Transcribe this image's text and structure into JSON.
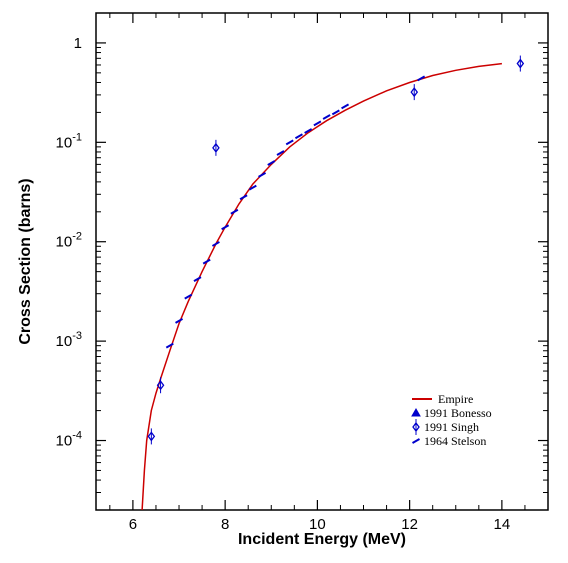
{
  "chart_data": {
    "type": "scatter",
    "title": "",
    "xlabel": "Incident Energy (MeV)",
    "ylabel": "Cross Section (barns)",
    "x_scale": "linear",
    "y_scale": "log",
    "xlim": [
      5.2,
      15.0
    ],
    "ylim": [
      2e-05,
      2.0
    ],
    "x_ticks": [
      6,
      8,
      10,
      12,
      14
    ],
    "y_ticks": [
      {
        "value": 1,
        "base": "1",
        "exp": ""
      },
      {
        "value": 0.1,
        "base": "10",
        "exp": "-1"
      },
      {
        "value": 0.01,
        "base": "10",
        "exp": "-2"
      },
      {
        "value": 0.001,
        "base": "10",
        "exp": "-3"
      },
      {
        "value": 0.0001,
        "base": "10",
        "exp": "-4"
      }
    ],
    "grid": false,
    "legend_position": "lower-right",
    "series": [
      {
        "name": "Empire",
        "kind": "line",
        "color": "#cc0000",
        "x": [
          6.2,
          6.25,
          6.3,
          6.4,
          6.5,
          6.6,
          6.8,
          7.0,
          7.2,
          7.5,
          7.8,
          8.0,
          8.3,
          8.6,
          9.0,
          9.4,
          9.8,
          10.2,
          10.6,
          11.0,
          11.5,
          12.0,
          12.5,
          13.0,
          13.5,
          14.0
        ],
        "y": [
          2e-05,
          5e-05,
          0.0001,
          0.0002,
          0.0003,
          0.00042,
          0.0008,
          0.0015,
          0.0025,
          0.005,
          0.0095,
          0.014,
          0.024,
          0.038,
          0.06,
          0.09,
          0.125,
          0.165,
          0.21,
          0.26,
          0.33,
          0.4,
          0.47,
          0.53,
          0.58,
          0.62
        ]
      },
      {
        "name": "1991 Bonesso",
        "kind": "markers",
        "marker": "triangle",
        "color": "#0000cc",
        "x": [],
        "y": []
      },
      {
        "name": "1991 Singh",
        "kind": "markers",
        "marker": "diamond",
        "color": "#0000cc",
        "x": [
          6.4,
          6.6,
          7.8,
          12.1,
          14.4
        ],
        "y": [
          0.00011,
          0.00036,
          0.088,
          0.32,
          0.62
        ]
      },
      {
        "name": "1964 Stelson",
        "kind": "markers",
        "marker": "slash",
        "color": "#0000cc",
        "x": [
          6.8,
          7.0,
          7.2,
          7.4,
          7.6,
          7.8,
          8.0,
          8.2,
          8.4,
          8.6,
          8.8,
          9.0,
          9.2,
          9.4,
          9.6,
          9.8,
          10.0,
          10.2,
          10.4,
          10.6,
          12.25
        ],
        "y": [
          0.0009,
          0.0016,
          0.0028,
          0.0042,
          0.0063,
          0.0095,
          0.014,
          0.02,
          0.028,
          0.035,
          0.047,
          0.062,
          0.078,
          0.1,
          0.115,
          0.13,
          0.155,
          0.18,
          0.2,
          0.23,
          0.44
        ]
      }
    ]
  }
}
